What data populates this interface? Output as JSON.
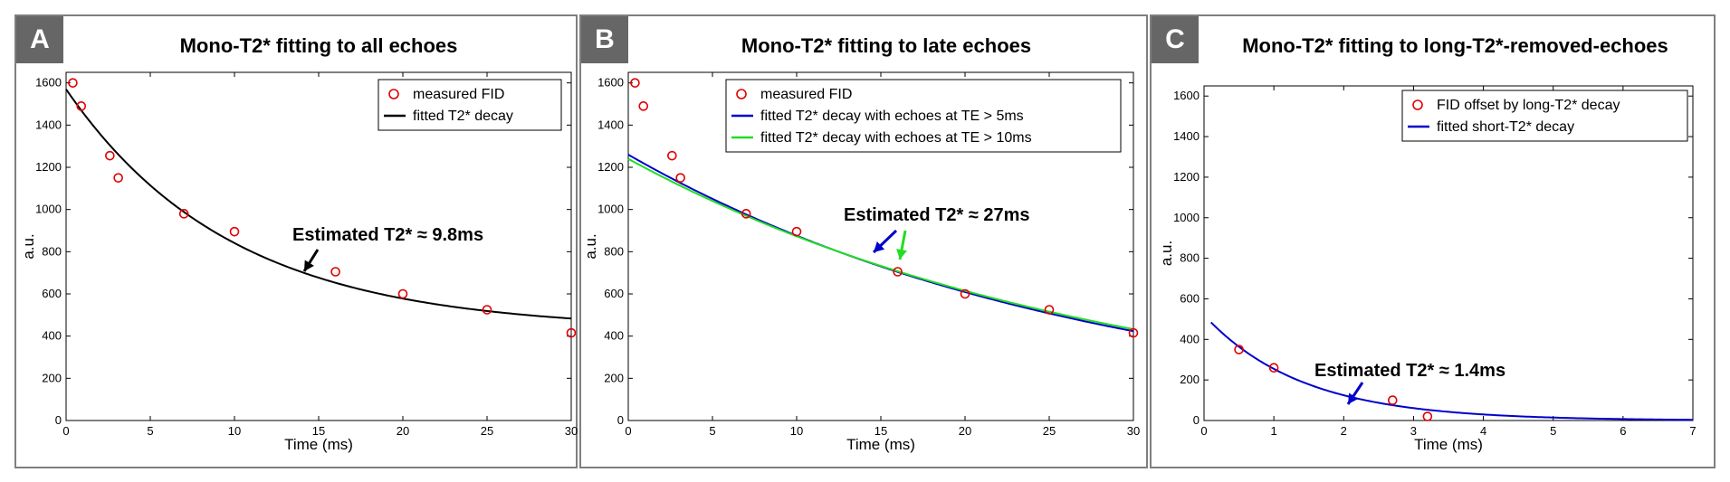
{
  "chart_data": [
    {
      "type": "scatter",
      "panel_label": "A",
      "title": "Mono-T2* fitting to all echoes",
      "xlabel": "Time (ms)",
      "ylabel": "a.u.",
      "xlim": [
        0,
        30
      ],
      "ylim": [
        0,
        1650
      ],
      "xticks": [
        0,
        5,
        10,
        15,
        20,
        25,
        30
      ],
      "yticks": [
        0,
        200,
        400,
        600,
        800,
        1000,
        1200,
        1400,
        1600
      ],
      "series": [
        {
          "name": "measured FID",
          "kind": "markers",
          "color": "#e00000",
          "x": [
            0.4,
            0.9,
            2.6,
            3.1,
            7,
            10,
            16,
            20,
            25,
            30
          ],
          "y": [
            1600,
            1490,
            1255,
            1150,
            980,
            895,
            705,
            600,
            525,
            415
          ]
        },
        {
          "name": "fitted T2* decay",
          "kind": "line",
          "color": "#000000",
          "model": {
            "A": 1140,
            "T2": 9.8,
            "C": 430
          },
          "xrange": [
            0,
            30
          ]
        }
      ],
      "annotation": {
        "text": "Estimated T2* ≈ 9.8ms",
        "arrow_color": "#000000"
      }
    },
    {
      "type": "scatter",
      "panel_label": "B",
      "title": "Mono-T2* fitting to late echoes",
      "xlabel": "Time (ms)",
      "ylabel": "a.u.",
      "xlim": [
        0,
        30
      ],
      "ylim": [
        0,
        1650
      ],
      "xticks": [
        0,
        5,
        10,
        15,
        20,
        25,
        30
      ],
      "yticks": [
        0,
        200,
        400,
        600,
        800,
        1000,
        1200,
        1400,
        1600
      ],
      "series": [
        {
          "name": "measured FID",
          "kind": "markers",
          "color": "#e00000",
          "x": [
            0.4,
            0.9,
            2.6,
            3.1,
            7,
            10,
            16,
            20,
            25,
            30
          ],
          "y": [
            1600,
            1490,
            1255,
            1150,
            980,
            895,
            705,
            600,
            525,
            415
          ]
        },
        {
          "name": "fitted T2* decay with echoes at TE > 5ms",
          "kind": "line",
          "color": "#0000cc",
          "model": {
            "A": 1260,
            "T2": 27.5,
            "C": 0
          },
          "xrange": [
            0,
            30
          ]
        },
        {
          "name": "fitted T2* decay with echoes at TE > 10ms",
          "kind": "line",
          "color": "#22dd22",
          "model": {
            "A": 1240,
            "T2": 28.5,
            "C": 0
          },
          "xrange": [
            0,
            30
          ]
        }
      ],
      "annotation": {
        "text": "Estimated T2* ≈ 27ms",
        "arrow_colors": [
          "#0000cc",
          "#22dd22"
        ]
      }
    },
    {
      "type": "scatter",
      "panel_label": "C",
      "title": "Mono-T2* fitting to long-T2*-removed-echoes",
      "xlabel": "Time (ms)",
      "ylabel": "a.u.",
      "xlim": [
        0,
        7
      ],
      "ylim": [
        0,
        1650
      ],
      "xticks": [
        0,
        1,
        2,
        3,
        4,
        5,
        6,
        7
      ],
      "yticks": [
        0,
        200,
        400,
        600,
        800,
        1000,
        1200,
        1400,
        1600
      ],
      "series": [
        {
          "name": "FID offset by long-T2* decay",
          "kind": "markers",
          "color": "#e00000",
          "x": [
            0.5,
            1,
            2.7,
            3.2
          ],
          "y": [
            350,
            260,
            100,
            20
          ]
        },
        {
          "name": "fitted short-T2* decay",
          "kind": "line",
          "color": "#0000cc",
          "model": {
            "A": 520,
            "T2": 1.4,
            "C": 0
          },
          "xrange": [
            0.1,
            7
          ]
        }
      ],
      "annotation": {
        "text": "Estimated T2* ≈ 1.4ms",
        "arrow_color": "#0000cc"
      }
    }
  ]
}
